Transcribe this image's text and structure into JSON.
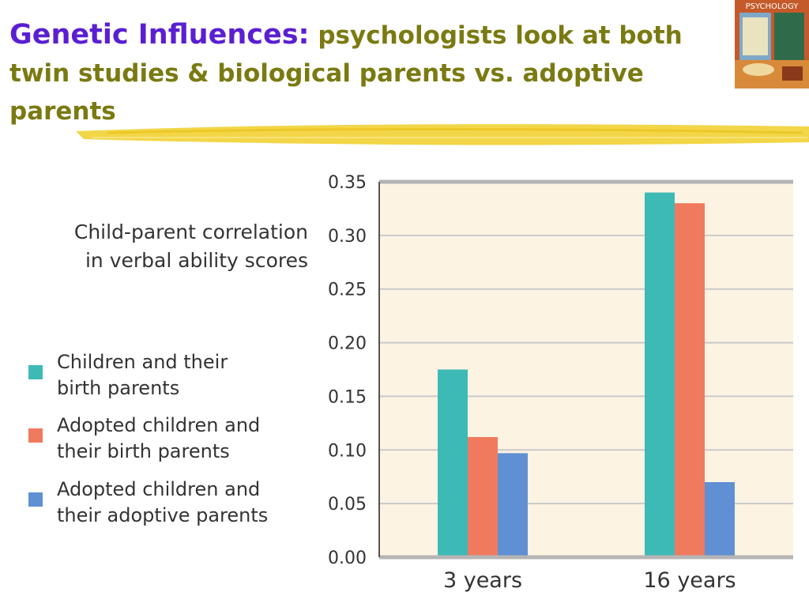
{
  "slide": {
    "title_lead": "Genetic Influences:",
    "title_rest": " psychologists look at  both twin studies & biological parents vs. adoptive parents",
    "thumbnail_text": "PSYCHOLOGY"
  },
  "colors": {
    "title_lead": "#5b1fd1",
    "title_rest": "#7a7a12",
    "underline": "#f2d234",
    "plot_background": "#fdf3e3",
    "gridline": "#c9c9c9",
    "series": [
      "#3dbab6",
      "#f07a5e",
      "#5f90d3"
    ]
  },
  "chart_data": {
    "type": "bar",
    "ylabel": "Child-parent correlation\nin verbal ability scores",
    "categories": [
      "3 years",
      "16 years"
    ],
    "ylim": [
      0,
      0.35
    ],
    "yticks": [
      "0.00",
      "0.05",
      "0.10",
      "0.15",
      "0.20",
      "0.25",
      "0.30",
      "0.35"
    ],
    "grid": true,
    "legend_position": "left",
    "series": [
      {
        "name": "Children and their\nbirth parents",
        "values": [
          0.175,
          0.34
        ]
      },
      {
        "name": "Adopted children and\ntheir birth parents",
        "values": [
          0.112,
          0.33
        ]
      },
      {
        "name": "Adopted children and\ntheir adoptive parents",
        "values": [
          0.097,
          0.07
        ]
      }
    ]
  }
}
